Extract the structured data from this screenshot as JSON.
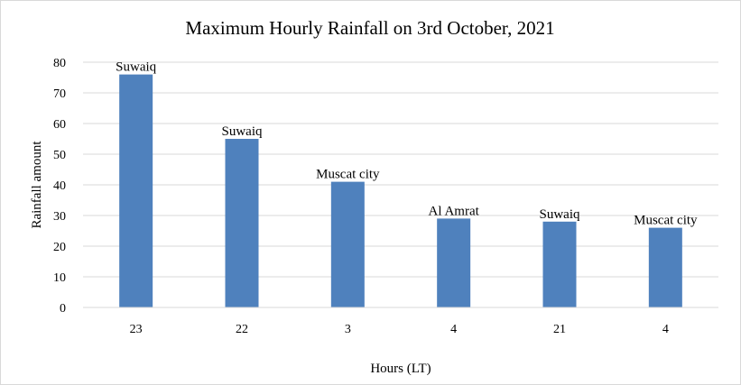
{
  "chart_data": {
    "type": "bar",
    "title": "Maximum Hourly Rainfall on 3rd October, 2021",
    "xlabel": "Hours (LT)",
    "ylabel": "Rainfall  amount",
    "categories": [
      "23",
      "22",
      "3",
      "4",
      "21",
      "4"
    ],
    "values": [
      76,
      55,
      41,
      29,
      28,
      26
    ],
    "data_labels": [
      "Suwaiq",
      "Suwaiq",
      "Muscat city",
      "Al Amrat",
      "Suwaiq",
      "Muscat city"
    ],
    "ylim": [
      0,
      80
    ],
    "yticks": [
      "0",
      "10",
      "20",
      "30",
      "40",
      "50",
      "60",
      "70",
      "80"
    ],
    "grid": true,
    "legend": "none",
    "bar_color": "#4f81bd"
  }
}
